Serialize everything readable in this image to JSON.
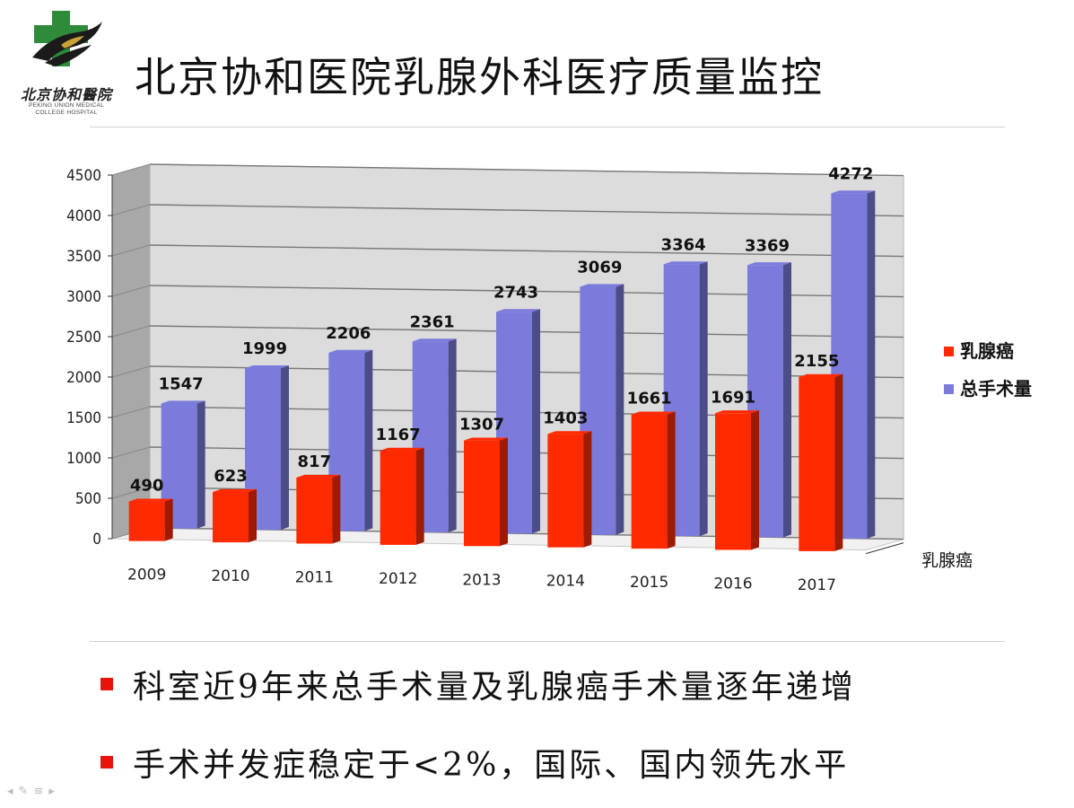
{
  "logo": {
    "name_cn": "北京协和醫院",
    "name_en_line1": "PEKING UNION MEDICAL",
    "name_en_line2": "COLLEGE HOSPITAL",
    "colors": {
      "cross": "#2e8b3a",
      "bird": "#1a1a1a",
      "gold": "#c9a23a"
    }
  },
  "title": "北京协和医院乳腺外科医疗质量监控",
  "chart_data": {
    "type": "bar",
    "title": "",
    "xlabel": "",
    "ylabel": "",
    "categories": [
      "2009",
      "2010",
      "2011",
      "2012",
      "2013",
      "2014",
      "2015",
      "2016",
      "2017"
    ],
    "series": [
      {
        "name": "乳腺癌",
        "values": [
          490,
          623,
          817,
          1167,
          1307,
          1403,
          1661,
          1691,
          2155
        ],
        "color": "#ff2a00"
      },
      {
        "name": "总手术量",
        "values": [
          1547,
          1999,
          2206,
          2361,
          2743,
          3069,
          3364,
          3369,
          4272
        ],
        "color": "#7b7bdc"
      }
    ],
    "ylim": [
      0,
      4500
    ],
    "yticks": [
      "0",
      "500",
      "1000",
      "1500",
      "2000",
      "2500",
      "3000",
      "3500",
      "4000",
      "4500"
    ],
    "depth_axis_label": "乳腺癌",
    "grid": true,
    "legend_position": "right",
    "style": "3d-clustered-column"
  },
  "bullets": [
    "科室近9年来总手术量及乳腺癌手术量逐年递增",
    "手术并发症稳定于<2%，国际、国内领先水平"
  ],
  "nav_icons": [
    "arrow-left-icon",
    "pen-icon",
    "menu-icon",
    "arrow-right-icon"
  ]
}
